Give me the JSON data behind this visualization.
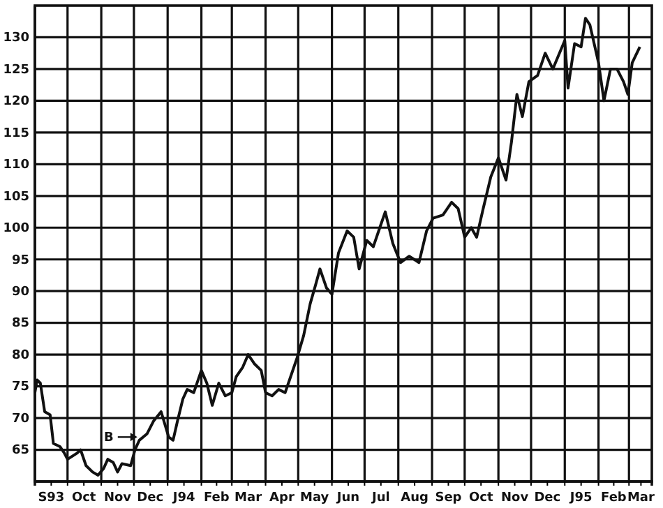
{
  "chart_data": {
    "type": "line",
    "x": [
      "1993-09-01",
      "1993-09-03",
      "1993-09-06",
      "1993-09-10",
      "1993-09-15",
      "1993-09-18",
      "1993-09-24",
      "1993-09-28",
      "1993-10-01",
      "1993-10-10",
      "1993-10-13",
      "1993-10-18",
      "1993-10-24",
      "1993-10-29",
      "1993-11-03",
      "1993-11-07",
      "1993-11-12",
      "1993-11-16",
      "1993-11-20",
      "1993-11-28",
      "1993-12-02",
      "1993-12-06",
      "1993-12-13",
      "1993-12-19",
      "1993-12-26",
      "1994-01-02",
      "1994-01-06",
      "1994-01-10",
      "1994-01-15",
      "1994-01-19",
      "1994-01-25",
      "1994-02-01",
      "1994-02-06",
      "1994-02-11",
      "1994-02-17",
      "1994-02-23",
      "1994-03-01",
      "1994-03-05",
      "1994-03-11",
      "1994-03-16",
      "1994-03-22",
      "1994-03-28",
      "1994-04-01",
      "1994-04-07",
      "1994-04-13",
      "1994-04-19",
      "1994-04-23",
      "1994-04-30",
      "1994-05-06",
      "1994-05-12",
      "1994-05-17",
      "1994-05-21",
      "1994-05-27",
      "1994-06-01",
      "1994-06-07",
      "1994-06-15",
      "1994-06-21",
      "1994-06-26",
      "1994-07-03",
      "1994-07-09",
      "1994-07-15",
      "1994-07-20",
      "1994-07-27",
      "1994-08-03",
      "1994-08-11",
      "1994-08-20",
      "1994-08-27",
      "1994-09-02",
      "1994-09-11",
      "1994-09-19",
      "1994-09-25",
      "1994-10-01",
      "1994-10-07",
      "1994-10-12",
      "1994-10-18",
      "1994-10-25",
      "1994-11-01",
      "1994-11-08",
      "1994-11-13",
      "1994-11-18",
      "1994-11-23",
      "1994-11-29",
      "1994-12-07",
      "1994-12-14",
      "1994-12-21",
      "1995-01-01",
      "1995-01-04",
      "1995-01-10",
      "1995-01-16",
      "1995-01-20",
      "1995-01-24",
      "1995-02-01",
      "1995-02-06",
      "1995-02-12",
      "1995-02-18",
      "1995-02-24",
      "1995-02-28",
      "1995-03-04",
      "1995-03-11"
    ],
    "series": [
      {
        "color": "#111111",
        "values": [
          74,
          76,
          75.5,
          71,
          70.5,
          66,
          65.5,
          64.5,
          63.5,
          64.5,
          65,
          62.5,
          61.5,
          61,
          62,
          63.5,
          63,
          61.5,
          62.8,
          62.5,
          65,
          66.5,
          67.5,
          69.5,
          71,
          67,
          66.5,
          69.5,
          73,
          74.5,
          74,
          77.5,
          75.5,
          72,
          75.5,
          73.5,
          74,
          76.5,
          78,
          80,
          78.5,
          77.5,
          74,
          73.5,
          74.5,
          74,
          76,
          79.5,
          83,
          88,
          91,
          93.5,
          90.5,
          89.5,
          96,
          99.5,
          98.5,
          93.5,
          98,
          97,
          100,
          102.5,
          97.5,
          94.5,
          95.5,
          94.5,
          99.5,
          101.5,
          102,
          104,
          103,
          98.5,
          100,
          98.5,
          103,
          108,
          111,
          107.5,
          113.5,
          121,
          117.5,
          123,
          124,
          127.5,
          125,
          129.5,
          122,
          129,
          128.5,
          133,
          132,
          126,
          120,
          125,
          125,
          123,
          121,
          126,
          128.5
        ]
      }
    ],
    "xlim": [
      "1993-09-01",
      "1995-03-22"
    ],
    "xticks": [
      {
        "value": "1993-09-16",
        "label": "S93"
      },
      {
        "value": "1993-10-01",
        "label": null
      },
      {
        "value": "1993-10-16",
        "label": "Oct"
      },
      {
        "value": "1993-11-01",
        "label": null
      },
      {
        "value": "1993-11-16",
        "label": "Nov"
      },
      {
        "value": "1993-12-01",
        "label": null
      },
      {
        "value": "1993-12-16",
        "label": "Dec"
      },
      {
        "value": "1994-01-01",
        "label": null
      },
      {
        "value": "1994-01-16",
        "label": "J94"
      },
      {
        "value": "1994-02-01",
        "label": null
      },
      {
        "value": "1994-02-15",
        "label": "Feb"
      },
      {
        "value": "1994-03-01",
        "label": null
      },
      {
        "value": "1994-03-16",
        "label": "Mar"
      },
      {
        "value": "1994-04-01",
        "label": null
      },
      {
        "value": "1994-04-16",
        "label": "Apr"
      },
      {
        "value": "1994-05-01",
        "label": null
      },
      {
        "value": "1994-05-16",
        "label": "May"
      },
      {
        "value": "1994-06-01",
        "label": null
      },
      {
        "value": "1994-06-16",
        "label": "Jun"
      },
      {
        "value": "1994-07-01",
        "label": null
      },
      {
        "value": "1994-07-16",
        "label": "Jul"
      },
      {
        "value": "1994-08-01",
        "label": null
      },
      {
        "value": "1994-08-16",
        "label": "Aug"
      },
      {
        "value": "1994-09-01",
        "label": null
      },
      {
        "value": "1994-09-16",
        "label": "Sep"
      },
      {
        "value": "1994-10-01",
        "label": null
      },
      {
        "value": "1994-10-16",
        "label": "Oct"
      },
      {
        "value": "1994-11-01",
        "label": null
      },
      {
        "value": "1994-11-16",
        "label": "Nov"
      },
      {
        "value": "1994-12-01",
        "label": null
      },
      {
        "value": "1994-12-16",
        "label": "Dec"
      },
      {
        "value": "1995-01-01",
        "label": null
      },
      {
        "value": "1995-01-16",
        "label": "J95"
      },
      {
        "value": "1995-02-01",
        "label": null
      },
      {
        "value": "1995-02-15",
        "label": "Feb"
      },
      {
        "value": "1995-03-01",
        "label": null
      },
      {
        "value": "1995-03-12",
        "label": "Mar"
      }
    ],
    "ylim": [
      60,
      135
    ],
    "yticks": [
      65,
      70,
      75,
      80,
      85,
      90,
      95,
      100,
      105,
      110,
      115,
      120,
      125,
      130
    ],
    "grid": true,
    "line_style": "solid",
    "annotations": [
      {
        "text": "B",
        "x": "1993-12-08",
        "y": 67
      }
    ]
  }
}
